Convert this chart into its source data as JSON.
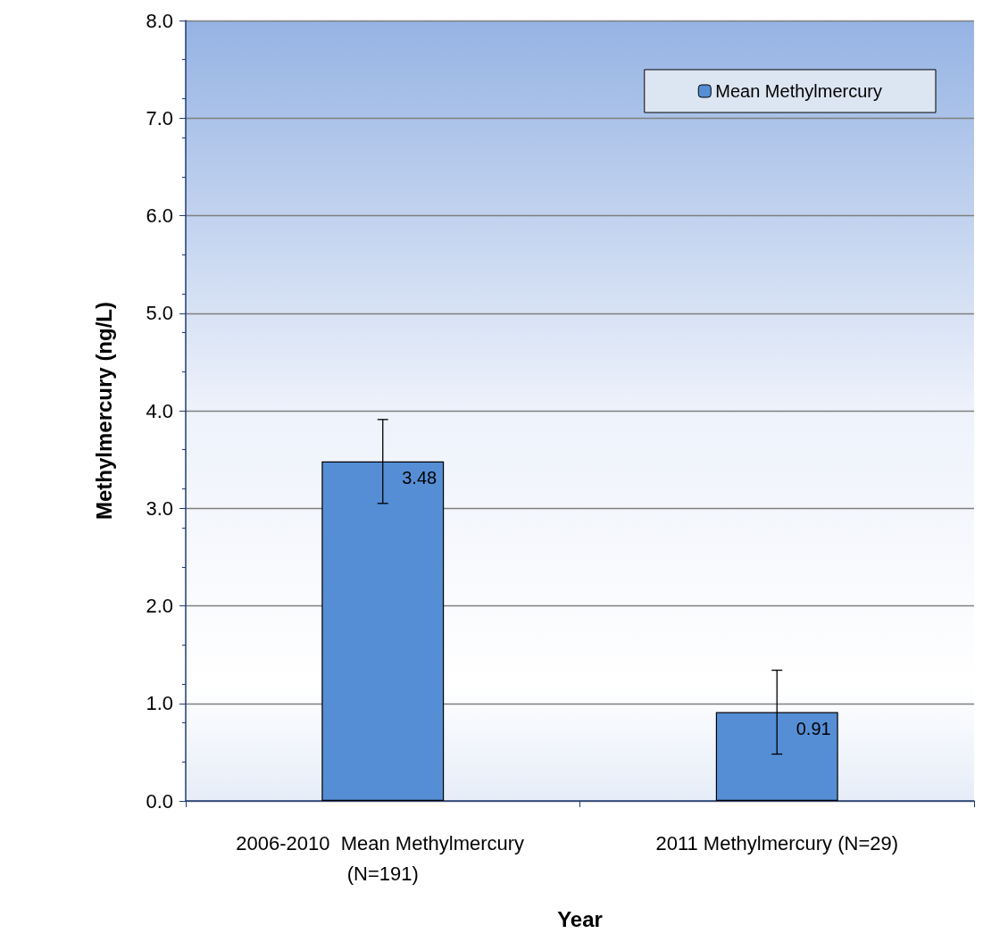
{
  "chart_data": {
    "type": "bar",
    "xlabel": "Year",
    "ylabel": "Methylmercury (ng/L)",
    "categories": [
      "2006-2010  Mean Methylmercury (N=191)",
      "2011 Methylmercury (N=29)"
    ],
    "series": [
      {
        "name": "Mean Methylmercury",
        "color": "#558ed5",
        "values": [
          3.48,
          0.91
        ],
        "errors": [
          0.43,
          0.43
        ]
      }
    ],
    "ylim": [
      0,
      8
    ],
    "yticks": [
      {
        "value": 0,
        "label": "0.0"
      },
      {
        "value": 1,
        "label": "1.0"
      },
      {
        "value": 2,
        "label": "2.0"
      },
      {
        "value": 3,
        "label": "3.0"
      },
      {
        "value": 4,
        "label": "4.0"
      },
      {
        "value": 5,
        "label": "5.0"
      },
      {
        "value": 6,
        "label": "6.0"
      },
      {
        "value": 7,
        "label": "7.0"
      },
      {
        "value": 8,
        "label": "8.0"
      }
    ],
    "grid": "y",
    "legend": "top right",
    "data_labels": true
  }
}
